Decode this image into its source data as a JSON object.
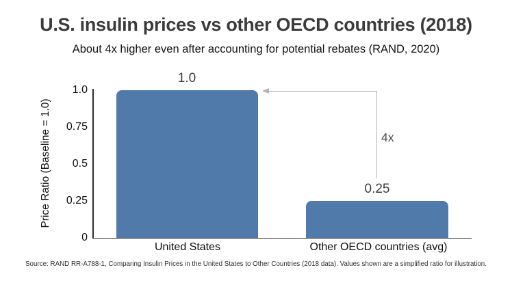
{
  "header": {
    "title": "U.S. insulin prices vs other OECD countries (2018)",
    "subtitle": "About 4x higher even after accounting for potential rebates (RAND, 2020)"
  },
  "chart_data": {
    "type": "bar",
    "title": "U.S. insulin prices vs other OECD countries (2018)",
    "subtitle": "About 4x higher even after accounting for potential rebates (RAND, 2020)",
    "categories": [
      "United States",
      "Other OECD countries (avg)"
    ],
    "values": [
      1.0,
      0.25
    ],
    "value_labels": [
      "1.0",
      "0.25"
    ],
    "xlabel": "",
    "ylabel": "Price Ratio (Baseline = 1.0)",
    "ylim": [
      0,
      1.0
    ],
    "yticks": [
      "0",
      "0.25",
      "0.5",
      "0.75",
      "1.0"
    ],
    "grid": false,
    "legend": false,
    "bar_color": "#4f7aa9",
    "annotation": {
      "label": "4x",
      "color": "#b3b3b3",
      "label_color": "#4a4a4a",
      "meaning": "arrow from top of Other OECD bar column up/left to top of United States bar"
    }
  },
  "footer": {
    "source": "Source: RAND RR-A788-1, Comparing Insulin Prices in the United States to Other Countries (2018 data). Values shown are a simplified ratio for illustration."
  }
}
